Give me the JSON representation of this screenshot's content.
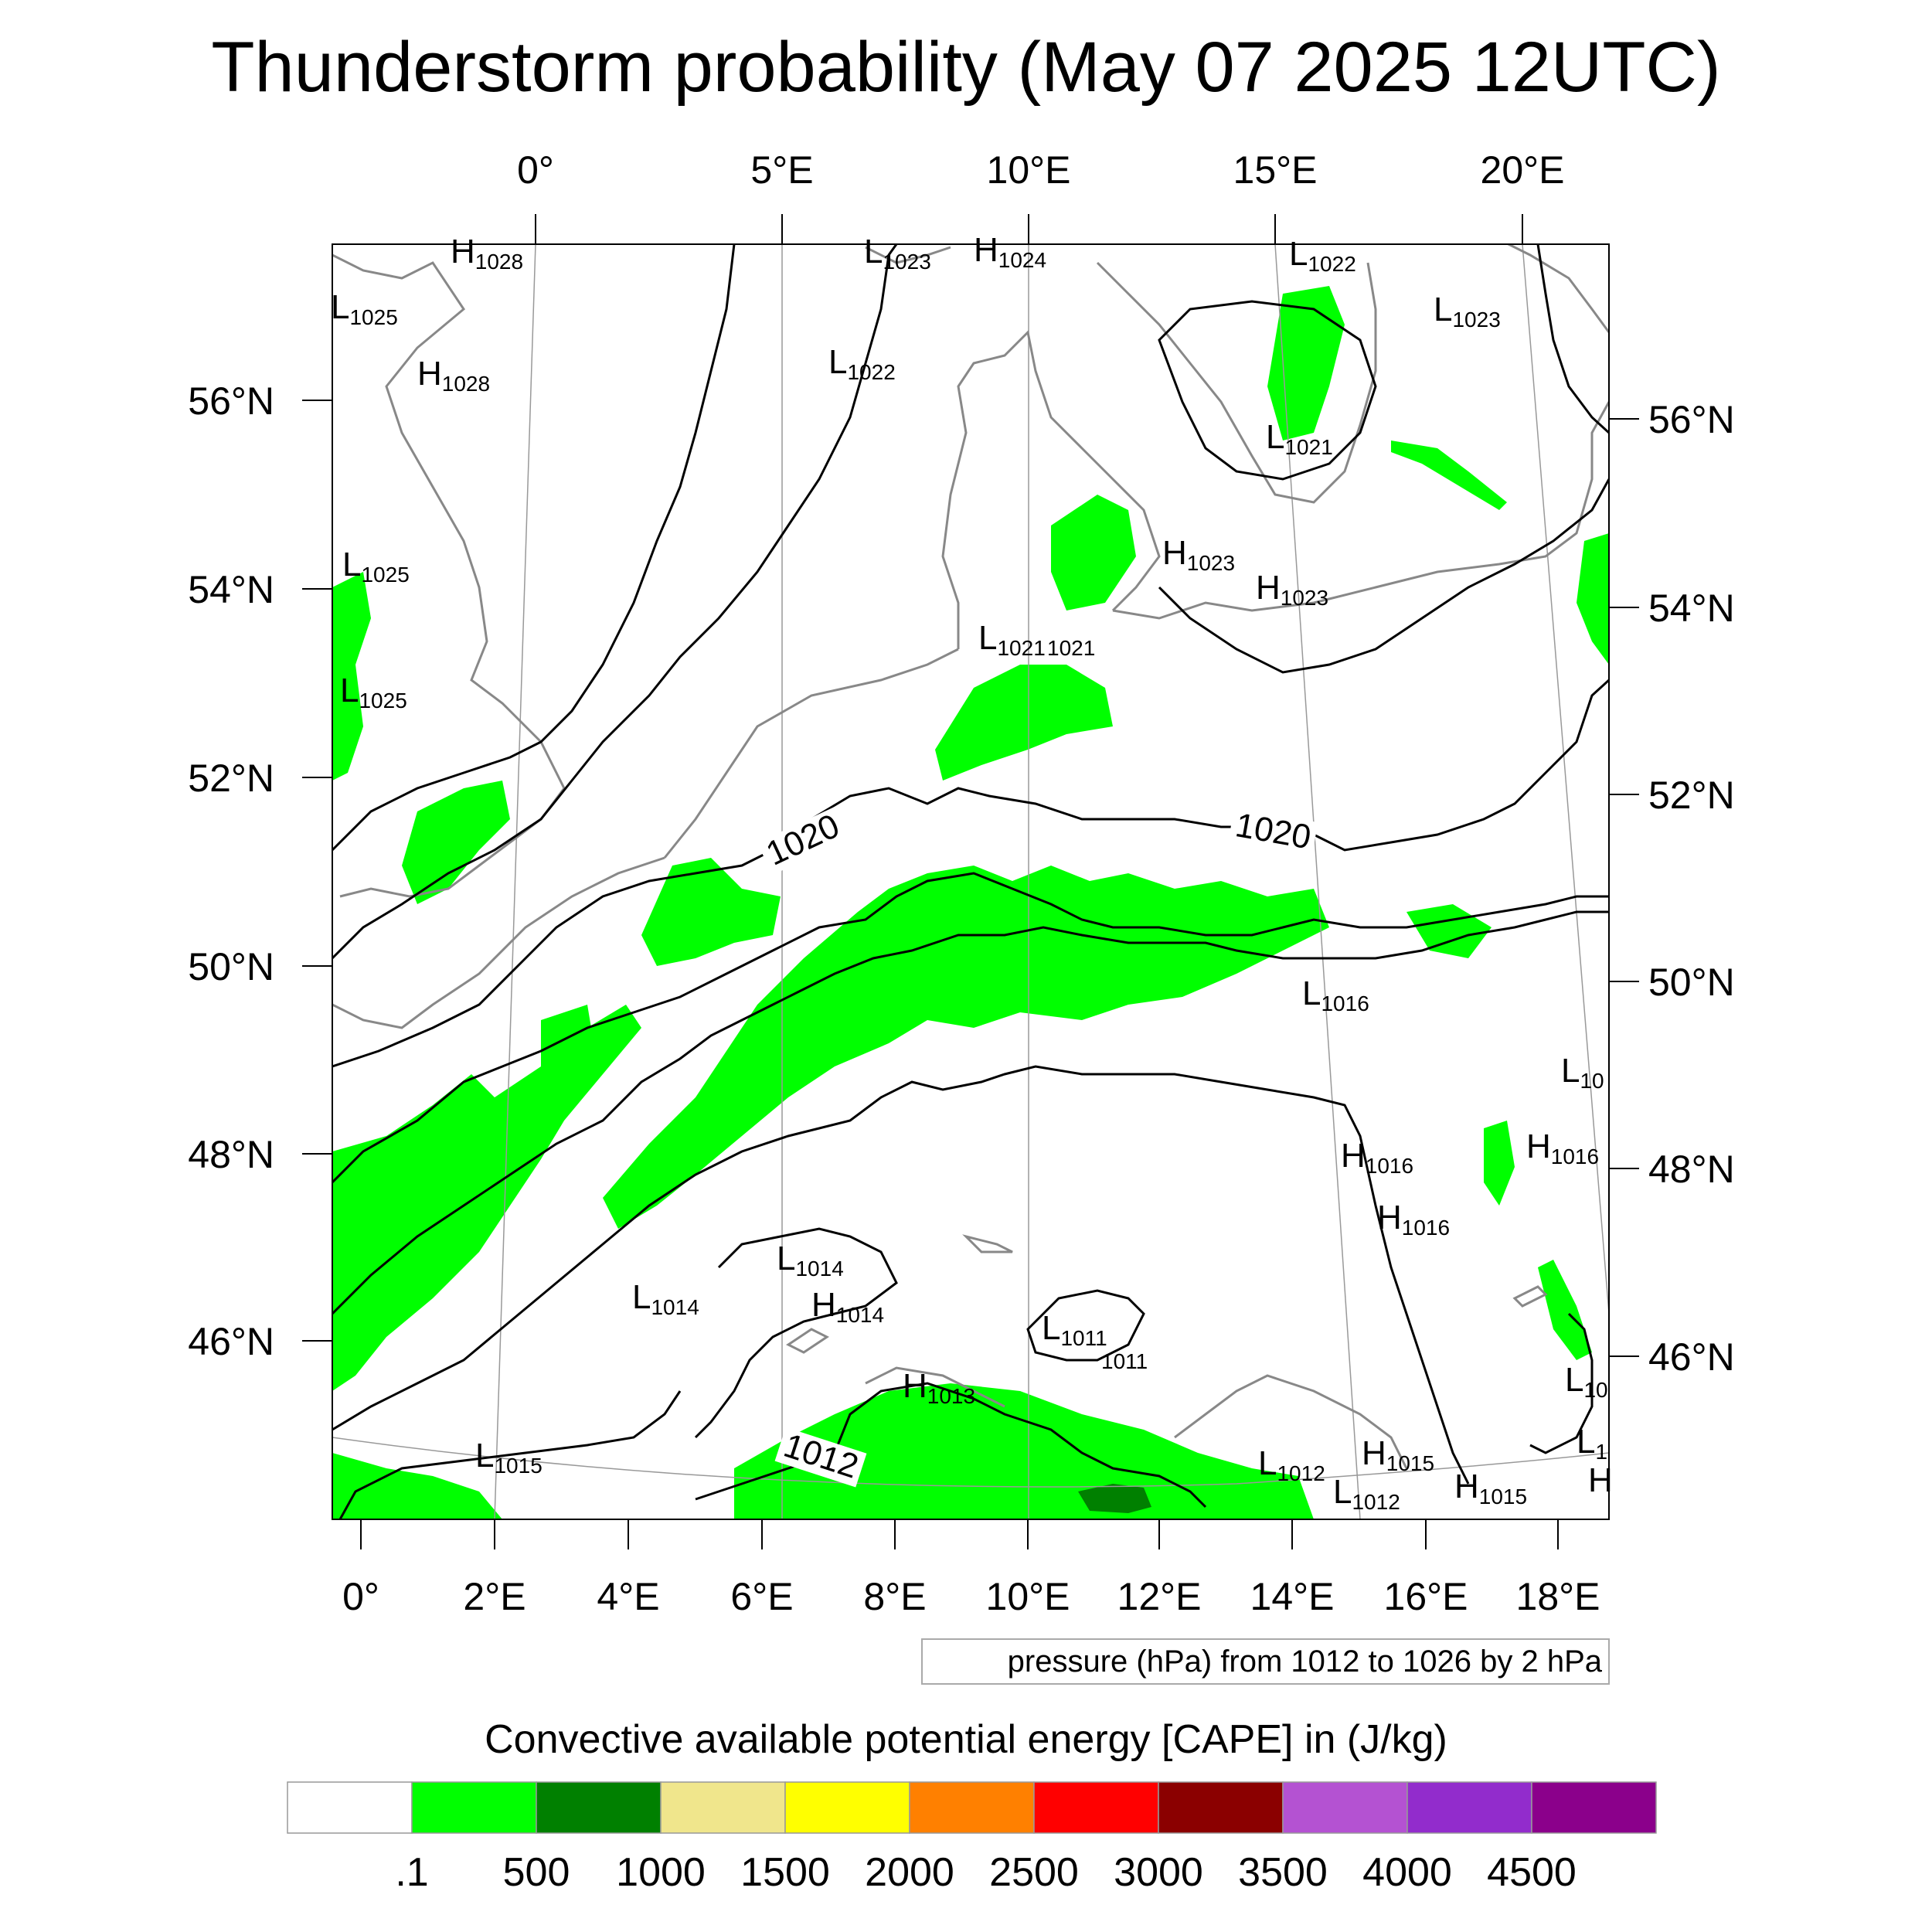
{
  "title": "Thunderstorm probability (May 07 2025 12UTC)",
  "top_lon_labels": [
    "0°",
    "5°E",
    "10°E",
    "15°E",
    "20°E"
  ],
  "bottom_lon_labels": [
    "0°",
    "2°E",
    "4°E",
    "6°E",
    "8°E",
    "10°E",
    "12°E",
    "14°E",
    "16°E",
    "18°E"
  ],
  "left_lat_labels": [
    "56°N",
    "54°N",
    "52°N",
    "50°N",
    "48°N",
    "46°N"
  ],
  "right_lat_labels": [
    "56°N",
    "54°N",
    "52°N",
    "50°N",
    "48°N",
    "46°N"
  ],
  "pressure_centers": [
    {
      "letter": "H",
      "value": "1028"
    },
    {
      "letter": "L",
      "value": "1025"
    },
    {
      "letter": "H",
      "value": "1028"
    },
    {
      "letter": "L",
      "value": "1025"
    },
    {
      "letter": "L",
      "value": "1025"
    },
    {
      "letter": "L",
      "value": "1023"
    },
    {
      "letter": "H",
      "value": "1024"
    },
    {
      "letter": "L",
      "value": "1022"
    },
    {
      "letter": "L",
      "value": "1022"
    },
    {
      "letter": "L",
      "value": "1023"
    },
    {
      "letter": "L",
      "value": "1021"
    },
    {
      "letter": "H",
      "value": "1023"
    },
    {
      "letter": "H",
      "value": "1023"
    },
    {
      "letter": "L",
      "value": "1021"
    },
    {
      "letter": "",
      "value": "1021"
    },
    {
      "letter": "L",
      "value": "1016"
    },
    {
      "letter": "L",
      "value": "10"
    },
    {
      "letter": "H",
      "value": "1016"
    },
    {
      "letter": "H",
      "value": "1016"
    },
    {
      "letter": "H",
      "value": "1016"
    },
    {
      "letter": "L",
      "value": "1014"
    },
    {
      "letter": "L",
      "value": "1014"
    },
    {
      "letter": "H",
      "value": "1014"
    },
    {
      "letter": "L",
      "value": "1011"
    },
    {
      "letter": "",
      "value": "1011"
    },
    {
      "letter": "H",
      "value": "1013"
    },
    {
      "letter": "L",
      "value": "1015"
    },
    {
      "letter": "L",
      "value": "10"
    },
    {
      "letter": "L",
      "value": "1"
    },
    {
      "letter": "H",
      "value": "1015"
    },
    {
      "letter": "L",
      "value": "1012"
    },
    {
      "letter": "L",
      "value": "1012"
    },
    {
      "letter": "H",
      "value": "1015"
    },
    {
      "letter": "H",
      "value": ""
    }
  ],
  "contour_labels": [
    "1020",
    "1020",
    "1012"
  ],
  "pressure_note": "pressure (hPa) from 1012 to 1026 by 2 hPa",
  "colorbar": {
    "title": "Convective available potential energy [CAPE] in (J/kg)",
    "colors": [
      "#ffffff",
      "#00ff00",
      "#008000",
      "#f0e68c",
      "#ffff00",
      "#ff8000",
      "#ff0000",
      "#8b0000",
      "#b452d2",
      "#922ccc",
      "#8b008b"
    ],
    "labels": [
      ".1",
      "500",
      "1000",
      "1500",
      "2000",
      "2500",
      "3000",
      "3500",
      "4000",
      "4500"
    ]
  },
  "colors": {
    "cape_low": "#00ff00",
    "cape_mid": "#008000",
    "coastline": "#888888",
    "isobar": "#000000"
  }
}
